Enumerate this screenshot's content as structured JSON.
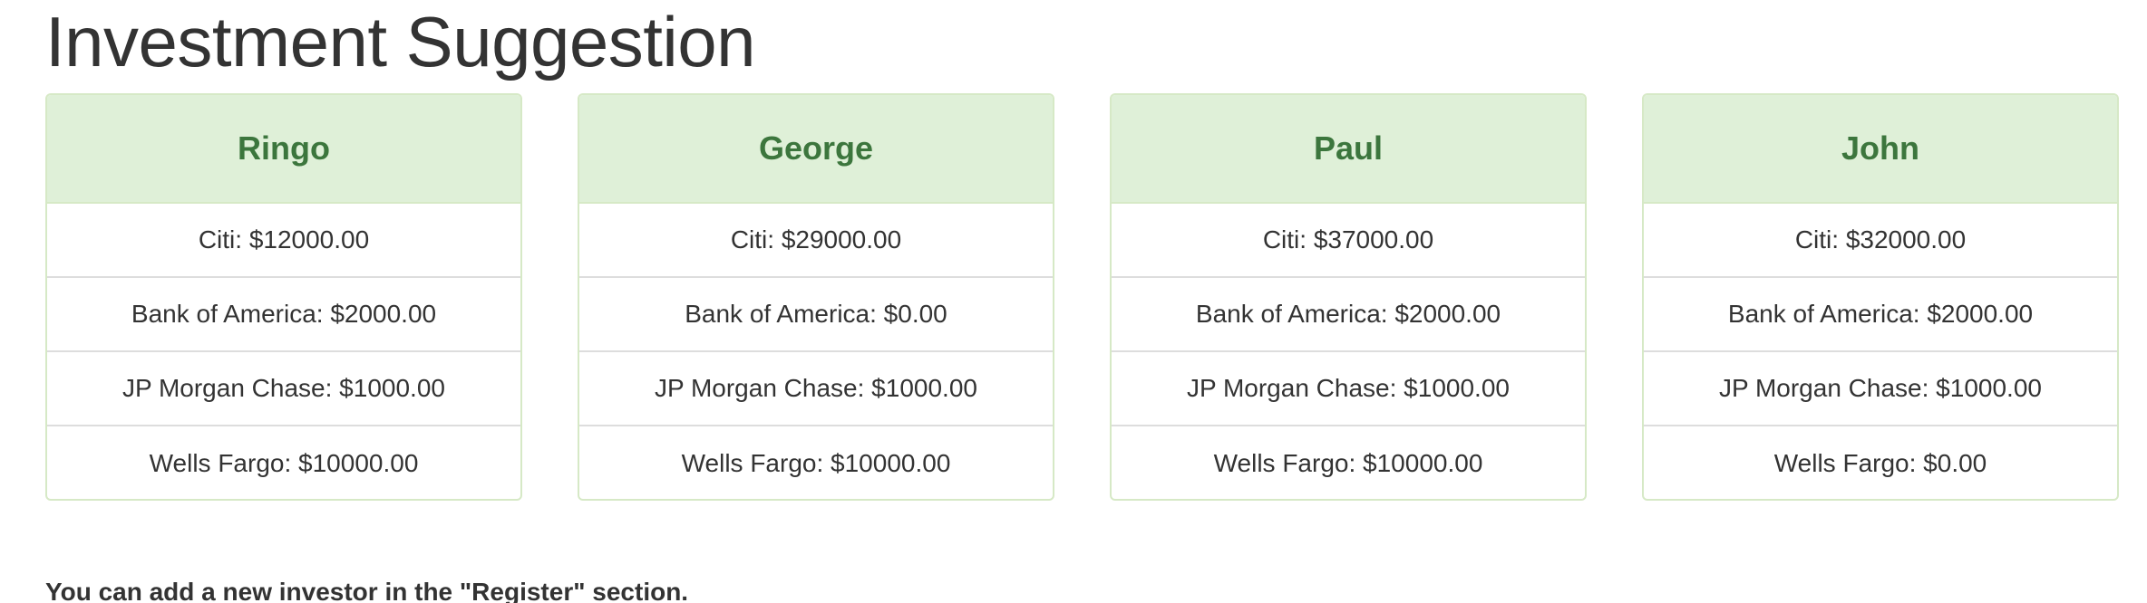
{
  "page": {
    "title": "Investment Suggestion",
    "footer_note": "You can add a new investor in the \"Register\" section."
  },
  "investors": [
    {
      "name": "Ringo",
      "banks": [
        "Citi: $12000.00",
        "Bank of America: $2000.00",
        "JP Morgan Chase: $1000.00",
        "Wells Fargo: $10000.00"
      ]
    },
    {
      "name": "George",
      "banks": [
        "Citi: $29000.00",
        "Bank of America: $0.00",
        "JP Morgan Chase: $1000.00",
        "Wells Fargo: $10000.00"
      ]
    },
    {
      "name": "Paul",
      "banks": [
        "Citi: $37000.00",
        "Bank of America: $2000.00",
        "JP Morgan Chase: $1000.00",
        "Wells Fargo: $10000.00"
      ]
    },
    {
      "name": "John",
      "banks": [
        "Citi: $32000.00",
        "Bank of America: $2000.00",
        "JP Morgan Chase: $1000.00",
        "Wells Fargo: $0.00"
      ]
    }
  ],
  "colors": {
    "header_bg": "#dff0d8",
    "header_border": "#d6e9c6",
    "header_text": "#3c763d",
    "body_text": "#333333",
    "row_divider": "#dddddd"
  }
}
